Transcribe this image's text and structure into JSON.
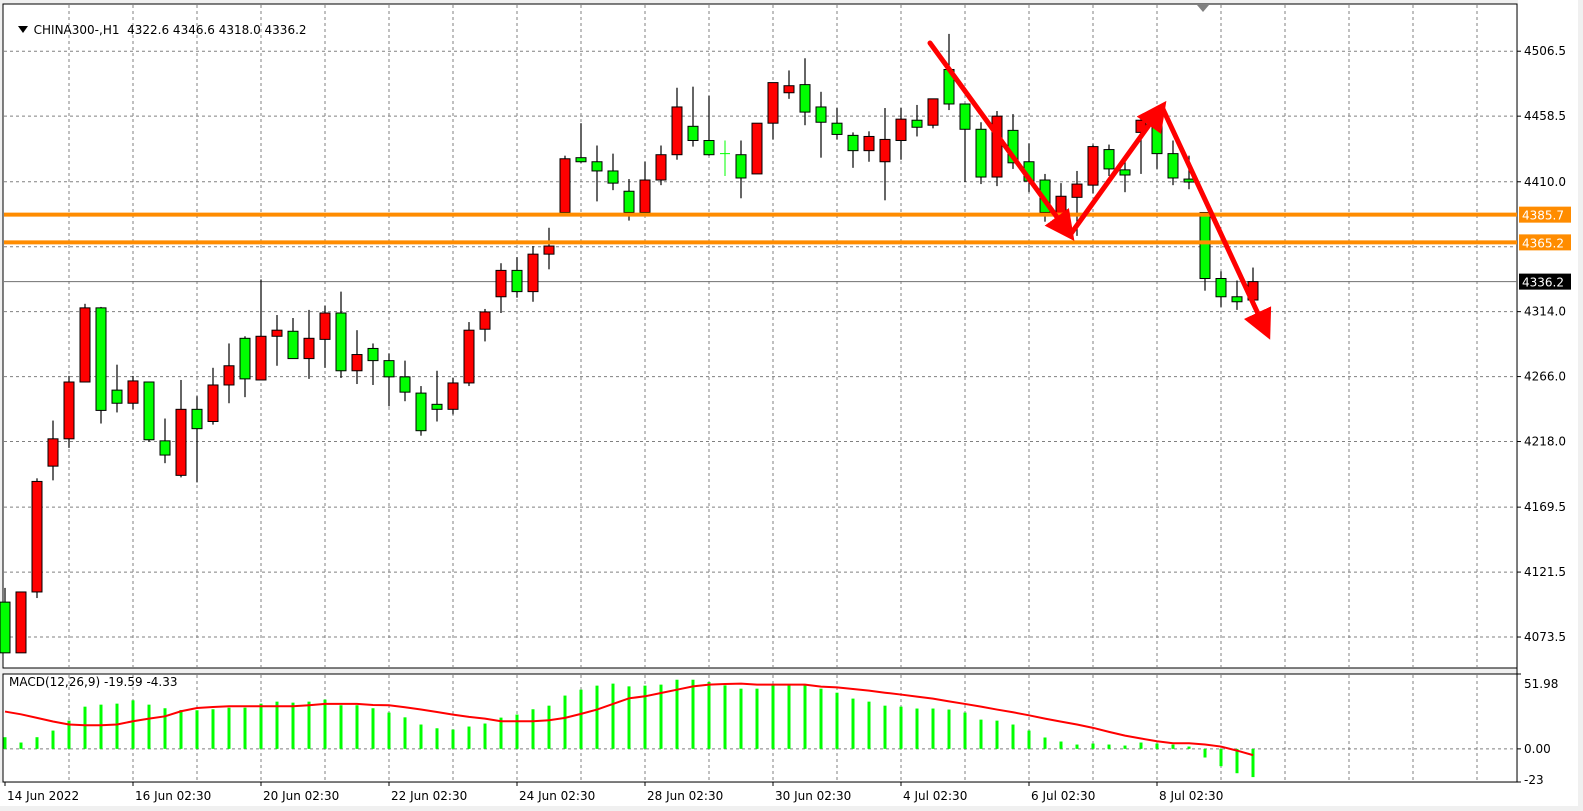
{
  "header": {
    "symbol": "CHINA300-,H1",
    "ohlc": "4322.6 4346.6 4318.0 4336.2",
    "menu_icon": "triangle-down-icon"
  },
  "macd_panel": {
    "label": "MACD(12,26,9) -19.59 -4.33"
  },
  "colors": {
    "up_candle": "#FF0000",
    "down_candle": "#00FF00",
    "level_line": "#FF8C00",
    "macd_histogram": "#00FF00",
    "signal_line": "#FF0000",
    "arrow": "#FF0000",
    "grid": "#808080"
  },
  "chart_data": [
    {
      "type": "candlestick",
      "title": "CHINA300-,H1",
      "ylim": [
        4050.6,
        4541.4
      ],
      "grid": true,
      "y_ticks": [
        "4506.5",
        "4458.5",
        "4410.0",
        "4314.0",
        "4266.0",
        "4218.0",
        "4169.5",
        "4121.5",
        "4073.5"
      ],
      "y_tick_values": [
        4506.5,
        4458.5,
        4410.0,
        4314.0,
        4266.0,
        4218.0,
        4169.5,
        4121.5,
        4073.5
      ],
      "x_ticks": [
        "14 Jun 2022",
        "16 Jun 02:30",
        "20 Jun 02:30",
        "22 Jun 02:30",
        "24 Jun 02:30",
        "28 Jun 02:30",
        "30 Jun 02:30",
        "4 Jul 02:30",
        "6 Jul 02:30",
        "8 Jul 02:30"
      ],
      "x_tick_bar_index": [
        0,
        8,
        16,
        24,
        32,
        40,
        48,
        56,
        64,
        72
      ],
      "ohlc_fields": [
        "open",
        "high",
        "low",
        "close"
      ],
      "ohlc": [
        [
          4099.3,
          4109.8,
          4061.8,
          4061.8
        ],
        [
          4061.8,
          4106.8,
          4061.8,
          4106.8
        ],
        [
          4106.8,
          4190.8,
          4102.3,
          4188.5
        ],
        [
          4199.8,
          4233.5,
          4189.3,
          4220.0
        ],
        [
          4220.0,
          4266.5,
          4213.3,
          4262.0
        ],
        [
          4262.0,
          4319.8,
          4262.0,
          4316.8
        ],
        [
          4316.8,
          4317.5,
          4231.3,
          4241.0
        ],
        [
          4256.0,
          4274.8,
          4239.5,
          4246.3
        ],
        [
          4246.3,
          4266.5,
          4241.8,
          4262.8
        ],
        [
          4262.0,
          4262.0,
          4217.8,
          4219.3
        ],
        [
          4218.5,
          4235.0,
          4202.0,
          4208.0
        ],
        [
          4193.0,
          4263.5,
          4191.5,
          4241.8
        ],
        [
          4241.8,
          4251.5,
          4187.8,
          4227.5
        ],
        [
          4232.8,
          4272.5,
          4230.5,
          4259.8
        ],
        [
          4259.8,
          4290.5,
          4246.3,
          4274.0
        ],
        [
          4294.3,
          4295.8,
          4250.8,
          4264.3
        ],
        [
          4263.5,
          4337.8,
          4263.5,
          4295.8
        ],
        [
          4295.8,
          4311.5,
          4274.0,
          4300.3
        ],
        [
          4299.5,
          4309.3,
          4279.3,
          4279.3
        ],
        [
          4279.3,
          4315.3,
          4264.3,
          4294.3
        ],
        [
          4293.5,
          4318.3,
          4272.5,
          4313.0
        ],
        [
          4313.0,
          4328.8,
          4265.0,
          4270.3
        ],
        [
          4270.3,
          4300.3,
          4260.5,
          4282.3
        ],
        [
          4286.8,
          4290.5,
          4259.8,
          4277.8
        ],
        [
          4277.8,
          4283.0,
          4244.0,
          4265.8
        ],
        [
          4265.8,
          4277.8,
          4247.8,
          4254.5
        ],
        [
          4253.8,
          4259.0,
          4222.3,
          4226.0
        ],
        [
          4245.5,
          4270.3,
          4232.8,
          4241.8
        ],
        [
          4241.8,
          4265.0,
          4238.0,
          4261.3
        ],
        [
          4261.3,
          4306.3,
          4259.0,
          4300.3
        ],
        [
          4301.0,
          4316.0,
          4292.0,
          4313.8
        ],
        [
          4325.0,
          4349.8,
          4313.0,
          4344.5
        ],
        [
          4344.5,
          4354.3,
          4324.3,
          4328.8
        ],
        [
          4328.8,
          4362.5,
          4321.3,
          4356.5
        ],
        [
          4356.5,
          4376.0,
          4345.3,
          4362.5
        ],
        [
          4387.3,
          4429.3,
          4387.3,
          4427.0
        ],
        [
          4427.8,
          4453.3,
          4424.0,
          4424.8
        ],
        [
          4424.8,
          4436.8,
          4395.5,
          4418.0
        ],
        [
          4418.0,
          4430.8,
          4403.8,
          4409.0
        ],
        [
          4403.0,
          4412.0,
          4381.3,
          4387.3
        ],
        [
          4387.3,
          4424.8,
          4387.3,
          4411.3
        ],
        [
          4411.3,
          4436.8,
          4407.5,
          4430.0
        ],
        [
          4430.0,
          4479.5,
          4426.3,
          4465.3
        ],
        [
          4451.0,
          4480.3,
          4436.0,
          4440.5
        ],
        [
          4440.5,
          4473.5,
          4429.3,
          4430.0
        ],
        [
          4430.8,
          4440.5,
          4414.3,
          4430.8
        ],
        [
          4430.0,
          4440.5,
          4397.8,
          4412.8
        ],
        [
          4415.8,
          4453.3,
          4415.8,
          4453.3
        ],
        [
          4453.3,
          4483.3,
          4441.3,
          4483.3
        ],
        [
          4475.8,
          4492.3,
          4471.3,
          4481.0
        ],
        [
          4481.8,
          4501.3,
          4451.8,
          4461.5
        ],
        [
          4465.3,
          4476.5,
          4427.8,
          4454.0
        ],
        [
          4453.3,
          4464.5,
          4441.3,
          4445.0
        ],
        [
          4444.3,
          4446.5,
          4420.3,
          4433.0
        ],
        [
          4433.0,
          4447.3,
          4424.8,
          4443.5
        ],
        [
          4424.8,
          4464.5,
          4396.3,
          4441.3
        ],
        [
          4440.5,
          4464.5,
          4426.3,
          4456.3
        ],
        [
          4455.5,
          4466.8,
          4443.5,
          4450.3
        ],
        [
          4451.8,
          4471.3,
          4449.5,
          4471.3
        ],
        [
          4493.0,
          4519.3,
          4463.0,
          4467.5
        ],
        [
          4467.5,
          4467.5,
          4409.8,
          4448.8
        ],
        [
          4448.8,
          4454.0,
          4408.3,
          4413.5
        ],
        [
          4413.5,
          4462.3,
          4406.8,
          4458.5
        ],
        [
          4448.0,
          4460.0,
          4419.5,
          4424.0
        ],
        [
          4424.8,
          4438.3,
          4402.3,
          4410.5
        ],
        [
          4411.3,
          4415.8,
          4380.5,
          4387.3
        ],
        [
          4385.8,
          4409.0,
          4373.0,
          4399.3
        ],
        [
          4398.5,
          4418.0,
          4370.0,
          4408.3
        ],
        [
          4407.5,
          4437.5,
          4401.5,
          4436.0
        ],
        [
          4433.8,
          4437.5,
          4414.3,
          4419.5
        ],
        [
          4418.8,
          4428.5,
          4402.3,
          4415.0
        ],
        [
          4446.5,
          4458.5,
          4415.8,
          4455.5
        ],
        [
          4455.5,
          4463.0,
          4419.5,
          4430.8
        ],
        [
          4430.8,
          4440.5,
          4407.5,
          4412.8
        ],
        [
          4412.0,
          4429.3,
          4404.5,
          4409.8
        ],
        [
          4387.3,
          4387.3,
          4329.5,
          4338.5
        ],
        [
          4338.5,
          4343.8,
          4317.5,
          4325.0
        ],
        [
          4325.0,
          4337.0,
          4315.3,
          4321.3
        ],
        [
          4322.6,
          4346.6,
          4318.0,
          4336.2
        ]
      ],
      "horizontal_levels": [
        {
          "value": 4385.7,
          "label": "4385.7"
        },
        {
          "value": 4365.2,
          "label": "4365.2"
        }
      ],
      "current_price": {
        "value": 4336.2,
        "label": "4336.2"
      },
      "annotations": "red trend arrows: down, up, down"
    },
    {
      "type": "bar+line",
      "title": "MACD(12,26,9) -19.59 -4.33",
      "ylim": [
        -23,
        51.98
      ],
      "y_ticks": [
        "51.98",
        "0.00",
        "-23"
      ],
      "y_tick_values": [
        51.98,
        0,
        -23
      ],
      "series": [
        {
          "name": "MACD",
          "kind": "histogram",
          "values": [
            8.1,
            4.4,
            8.1,
            12.7,
            19.6,
            29.3,
            30.7,
            31.4,
            33.7,
            30.7,
            28.2,
            27.0,
            26.8,
            27.5,
            28.6,
            28.6,
            31.4,
            32.8,
            32.1,
            32.8,
            34.2,
            30.3,
            30.3,
            28.2,
            25.2,
            21.9,
            16.9,
            14.3,
            13.4,
            15.5,
            17.6,
            21.7,
            23.8,
            27.5,
            30.0,
            37.0,
            41.1,
            43.9,
            45.3,
            43.4,
            43.9,
            44.6,
            48.0,
            48.0,
            46.4,
            44.1,
            41.8,
            41.8,
            44.1,
            44.1,
            44.1,
            41.8,
            39.0,
            34.9,
            32.8,
            30.0,
            29.3,
            28.0,
            28.0,
            27.3,
            25.2,
            20.3,
            19.6,
            16.9,
            12.7,
            7.9,
            5.1,
            3.0,
            3.7,
            3.0,
            2.3,
            4.4,
            3.7,
            3.0,
            1.6,
            -6.0,
            -12.0,
            -16.9,
            -19.59
          ]
        },
        {
          "name": "Signal",
          "kind": "line",
          "values": [
            25.9,
            24.0,
            21.5,
            19.0,
            16.9,
            16.4,
            16.4,
            16.9,
            19.2,
            21.0,
            22.6,
            26.1,
            28.4,
            29.1,
            29.6,
            29.6,
            29.6,
            29.6,
            29.6,
            30.3,
            31.2,
            31.2,
            31.2,
            30.5,
            30.3,
            28.9,
            27.3,
            25.6,
            23.8,
            22.2,
            21.0,
            19.2,
            19.2,
            19.2,
            19.9,
            21.5,
            24.3,
            27.3,
            31.2,
            35.1,
            36.5,
            38.8,
            41.1,
            43.4,
            44.6,
            45.0,
            45.3,
            44.6,
            44.6,
            44.6,
            44.6,
            43.2,
            42.7,
            41.6,
            40.4,
            39.0,
            37.7,
            36.3,
            34.9,
            33.0,
            31.2,
            29.3,
            27.3,
            25.4,
            23.3,
            21.0,
            18.9,
            16.9,
            14.6,
            11.8,
            9.2,
            7.2,
            5.3,
            3.9,
            3.9,
            3.0,
            1.6,
            -1.2,
            -4.33
          ]
        }
      ]
    }
  ]
}
